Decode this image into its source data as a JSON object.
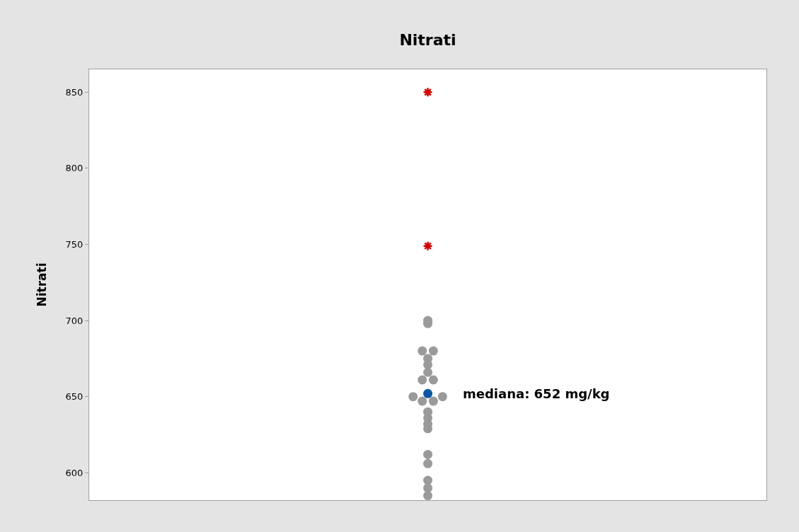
{
  "chart_data": {
    "type": "scatter",
    "title": "Nitrati",
    "ylabel": "Nitrati",
    "categories": [
      null
    ],
    "ylim": [
      582,
      865
    ],
    "yticks": [
      600,
      650,
      700,
      750,
      800,
      850
    ],
    "marker": "circle",
    "series": [
      {
        "color": "#9a9a9a",
        "x": [
          null,
          null,
          null,
          null,
          null,
          null,
          null,
          null,
          null,
          null,
          null,
          null,
          null,
          null,
          null,
          null,
          null,
          null,
          null,
          null,
          null,
          null
        ],
        "values": [
          700,
          698,
          680,
          680,
          675,
          671,
          666,
          661,
          661,
          650,
          650,
          647,
          647,
          640,
          636,
          632,
          629,
          612,
          606,
          595,
          590,
          585
        ]
      },
      {
        "color": "#d40000",
        "marker": "cross",
        "x": [
          null,
          null
        ],
        "values": [
          850,
          749
        ]
      },
      {
        "color": "#0b57a4",
        "x": [
          null
        ],
        "values": [
          652
        ]
      }
    ],
    "annotations": [
      "mediana: 652 mg/kg"
    ]
  }
}
